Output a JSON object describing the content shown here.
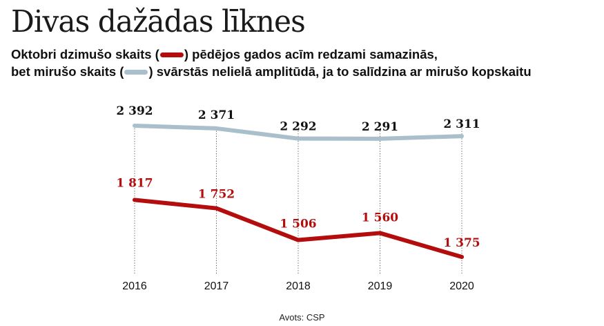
{
  "title": "Divas dažādas līknes",
  "subtitle": {
    "line1_before": "Oktobri dzimušo skaits (",
    "line1_after": ") pēdējos gados acīm redzami samazinās,",
    "line2_before": "bet mirušo skaits (",
    "line2_after": ") svārstās nelielā amplitūdā, ja to salīdzina ar mirušo kopskaitu"
  },
  "source": "Avots: CSP",
  "colors": {
    "births": "#b30d0d",
    "deaths": "#a9bfcc",
    "grid": "#555555",
    "label_deaths": "#111111",
    "label_births": "#b30d0d"
  },
  "chart_data": {
    "type": "line",
    "x": [
      "2016",
      "2017",
      "2018",
      "2019",
      "2020"
    ],
    "series": [
      {
        "key": "deaths",
        "values": [
          2392,
          2371,
          2292,
          2291,
          2311
        ],
        "labels": [
          "2 392",
          "2 371",
          "2 292",
          "2 291",
          "2 311"
        ]
      },
      {
        "key": "births",
        "values": [
          1817,
          1752,
          1506,
          1560,
          1375
        ],
        "labels": [
          "1 817",
          "1 752",
          "1 506",
          "1 560",
          "1 375"
        ]
      }
    ],
    "xlabel": "",
    "ylabel": "",
    "ylim": [
      1300,
      2400
    ],
    "grid": "vertical dotted lines at each year",
    "legend": "inline in subtitle"
  }
}
